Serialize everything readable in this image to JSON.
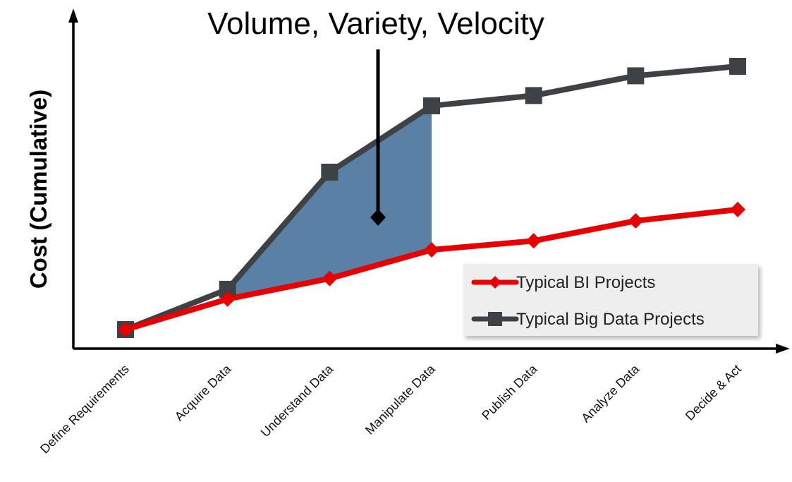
{
  "chart_data": {
    "type": "line",
    "title": "",
    "xlabel": "",
    "ylabel": "Cost (Cumulative)",
    "categories": [
      "Define Requirements",
      "Acquire Data",
      "Understand Data",
      "Manipulate Data",
      "Publish Data",
      "Analyze Data",
      "Decide & Act"
    ],
    "ylim": [
      0,
      100
    ],
    "grid": false,
    "legend_position": "bottom-right",
    "series": [
      {
        "name": "Typical BI Projects",
        "color": "#e60000",
        "marker": "diamond",
        "values": [
          0,
          11.6,
          19.4,
          30.3,
          33.7,
          41.3,
          45.6
        ]
      },
      {
        "name": "Typical Big Data Projects",
        "color": "#3f4244",
        "marker": "square",
        "values": [
          0,
          15.3,
          59.8,
          85.0,
          88.9,
          96.4,
          100
        ]
      }
    ],
    "shaded_region": {
      "between_series": [
        "Typical BI Projects",
        "Typical Big Data Projects"
      ],
      "from_category": "Acquire Data",
      "to_category": "Manipulate Data",
      "color": "#5a80a6"
    },
    "annotations": [
      {
        "text": "Volume, Variety, Velocity",
        "points_to_category_between": [
          "Understand Data",
          "Manipulate Data"
        ]
      }
    ]
  }
}
